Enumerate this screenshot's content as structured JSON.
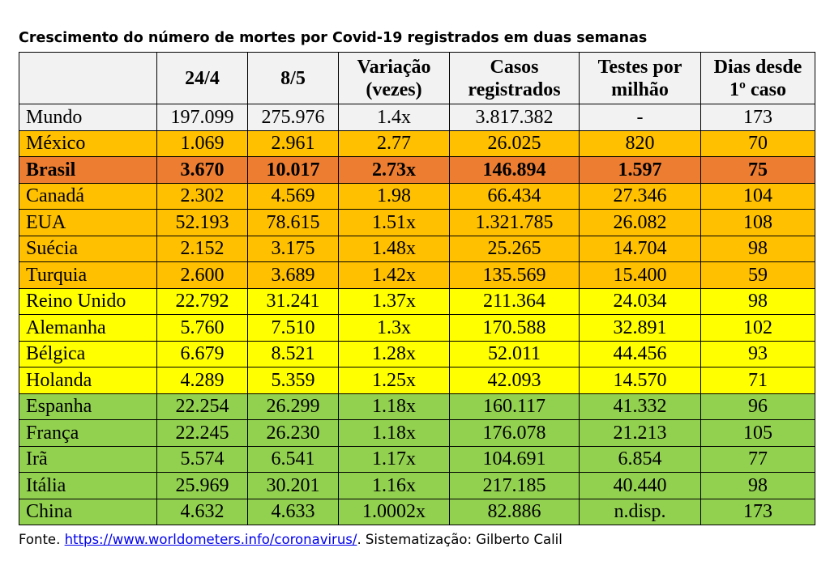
{
  "title": "Crescimento do número de mortes por Covid-19 registrados em duas semanas",
  "headers": [
    [
      "",
      ""
    ],
    [
      "24/4",
      ""
    ],
    [
      "8/5",
      ""
    ],
    [
      "Variação",
      "(vezes)"
    ],
    [
      "Casos",
      "registrados"
    ],
    [
      "Testes por",
      "milhão"
    ],
    [
      "Dias desde",
      "1º caso"
    ]
  ],
  "colors": {
    "world": "#f2f2f2",
    "orange": "#ffc000",
    "brazil": "#ed7d31",
    "yellow": "#ffff00",
    "green": "#92d050"
  },
  "rows": [
    {
      "color": "world",
      "bold": false,
      "cells": [
        "Mundo",
        "197.099",
        "275.976",
        "1.4x",
        "3.817.382",
        "-",
        "173"
      ]
    },
    {
      "color": "orange",
      "bold": false,
      "cells": [
        "México",
        "1.069",
        "2.961",
        "2.77",
        "26.025",
        "820",
        "70"
      ]
    },
    {
      "color": "brazil",
      "bold": true,
      "cells": [
        "Brasil",
        "3.670",
        "10.017",
        "2.73x",
        "146.894",
        "1.597",
        "75"
      ]
    },
    {
      "color": "orange",
      "bold": false,
      "cells": [
        "Canadá",
        "2.302",
        "4.569",
        "1.98",
        "66.434",
        "27.346",
        "104"
      ]
    },
    {
      "color": "orange",
      "bold": false,
      "cells": [
        "EUA",
        "52.193",
        "78.615",
        "1.51x",
        "1.321.785",
        "26.082",
        "108"
      ]
    },
    {
      "color": "orange",
      "bold": false,
      "cells": [
        "Suécia",
        "2.152",
        "3.175",
        "1.48x",
        "25.265",
        "14.704",
        "98"
      ]
    },
    {
      "color": "orange",
      "bold": false,
      "cells": [
        "Turquia",
        "2.600",
        "3.689",
        "1.42x",
        "135.569",
        "15.400",
        "59"
      ]
    },
    {
      "color": "yellow",
      "bold": false,
      "cells": [
        "Reino Unido",
        "22.792",
        "31.241",
        "1.37x",
        "211.364",
        "24.034",
        "98"
      ]
    },
    {
      "color": "yellow",
      "bold": false,
      "cells": [
        "Alemanha",
        "5.760",
        "7.510",
        "1.3x",
        "170.588",
        "32.891",
        "102"
      ]
    },
    {
      "color": "yellow",
      "bold": false,
      "cells": [
        "Bélgica",
        "6.679",
        "8.521",
        "1.28x",
        "52.011",
        "44.456",
        "93"
      ]
    },
    {
      "color": "yellow",
      "bold": false,
      "cells": [
        "Holanda",
        "4.289",
        "5.359",
        "1.25x",
        "42.093",
        "14.570",
        "71"
      ]
    },
    {
      "color": "green",
      "bold": false,
      "cells": [
        "Espanha",
        "22.254",
        "26.299",
        "1.18x",
        "160.117",
        "41.332",
        "96"
      ]
    },
    {
      "color": "green",
      "bold": false,
      "cells": [
        "França",
        "22.245",
        "26.230",
        "1.18x",
        "176.078",
        "21.213",
        "105"
      ]
    },
    {
      "color": "green",
      "bold": false,
      "cells": [
        "Irã",
        "5.574",
        "6.541",
        "1.17x",
        "104.691",
        "6.854",
        "77"
      ]
    },
    {
      "color": "green",
      "bold": false,
      "cells": [
        "Itália",
        "25.969",
        "30.201",
        "1.16x",
        "217.185",
        "40.440",
        "98"
      ]
    },
    {
      "color": "green",
      "bold": false,
      "cells": [
        "China",
        "4.632",
        "4.633",
        "1.0002x",
        "82.886",
        "n.disp.",
        "173"
      ]
    }
  ],
  "footer": {
    "prefix": "Fonte. ",
    "link": "https://www.worldometers.info/coronavirus/",
    "suffix": ". Sistematização: Gilberto Calil"
  }
}
